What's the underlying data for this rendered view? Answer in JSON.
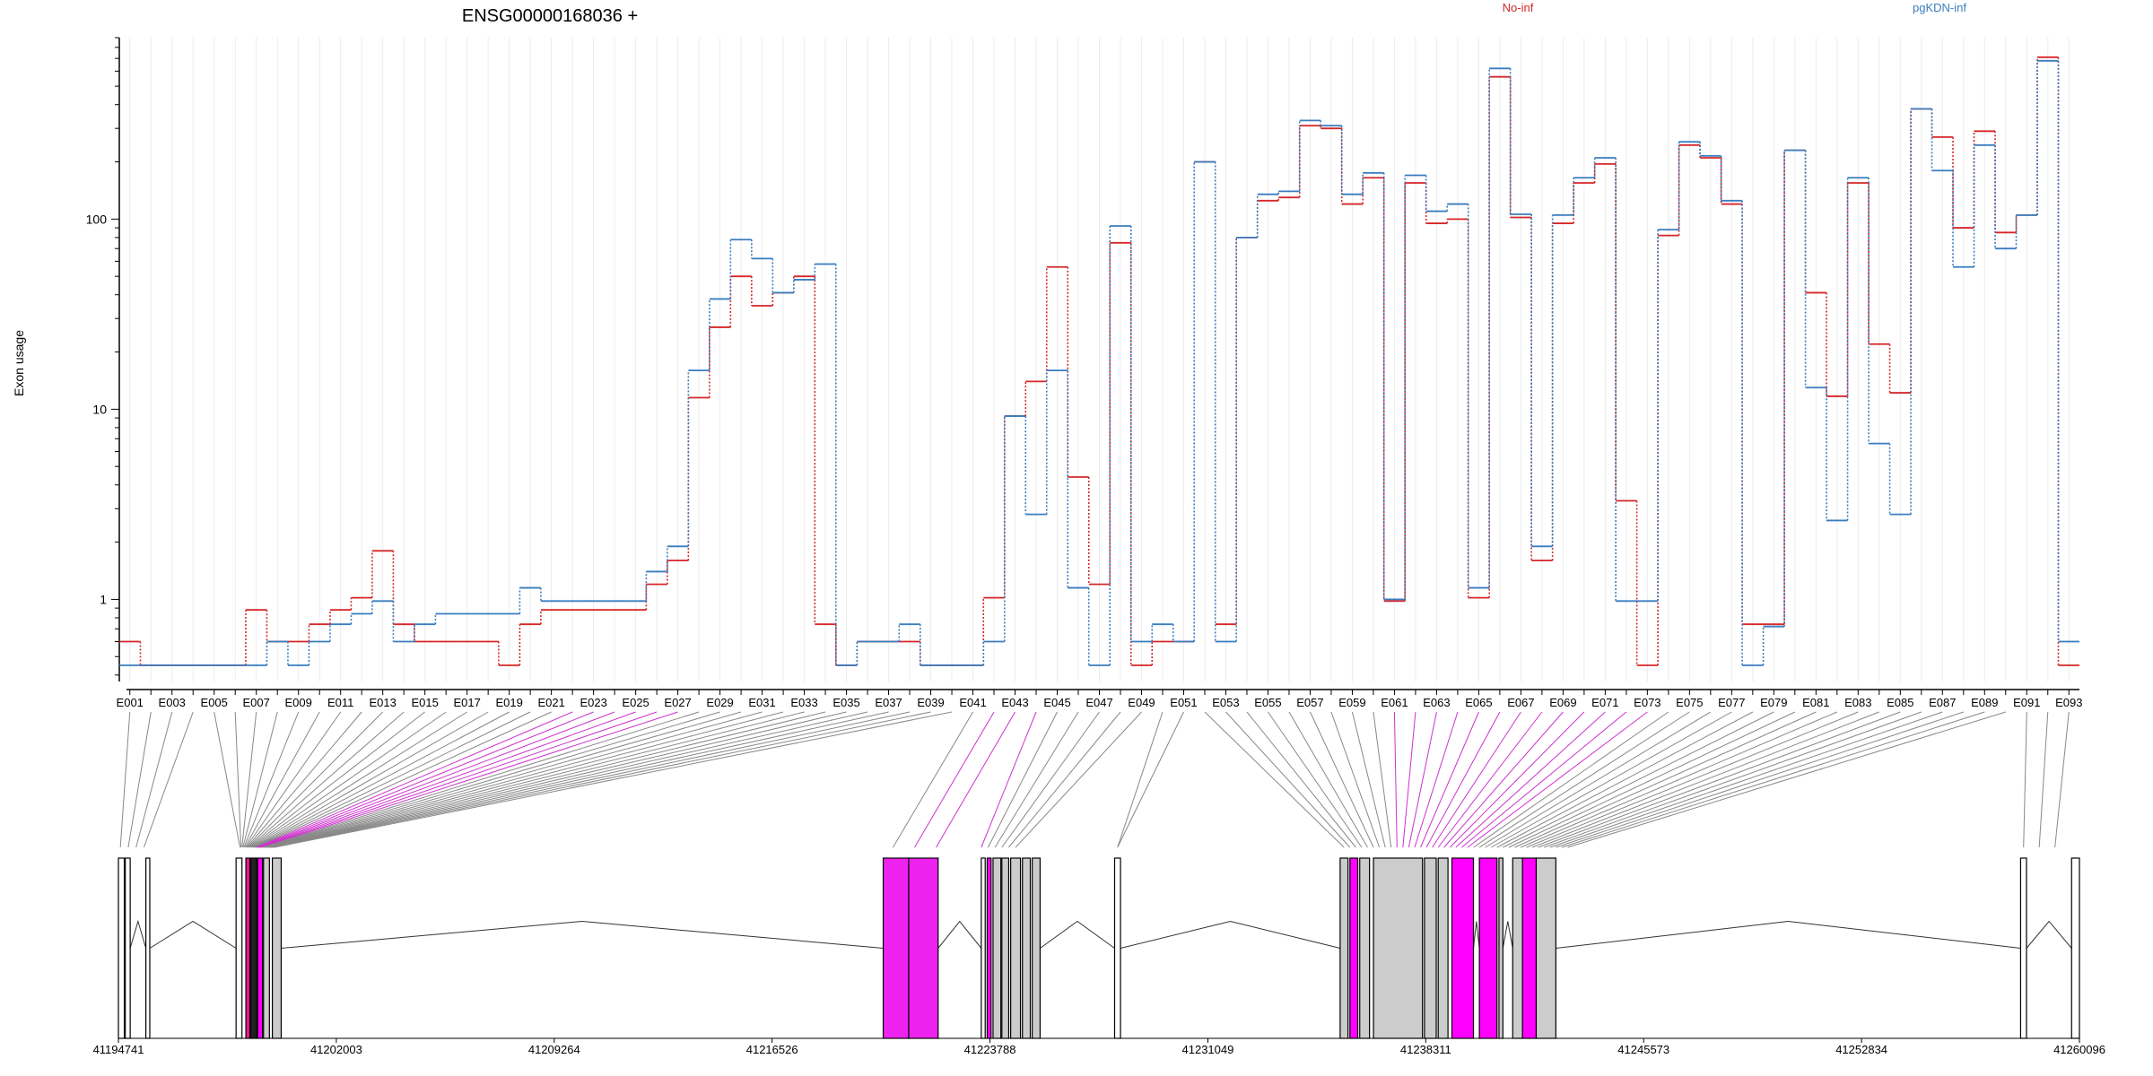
{
  "chart_data": {
    "type": "line",
    "title": "ENSG00000168036 +",
    "ylabel": "Exon usage",
    "xlabel": "",
    "yscale": "log",
    "ylim": [
      0.37,
      900
    ],
    "yticks": [
      1,
      10,
      100
    ],
    "ytick_labels": [
      "1",
      "10",
      "100"
    ],
    "legend": [
      "No-inf",
      "pgKDN-inf"
    ],
    "legend_placement": "top",
    "grid": true,
    "exon_labels_shown": [
      "E001",
      "E003",
      "E005",
      "E007",
      "E009",
      "E011",
      "E013",
      "E015",
      "E017",
      "E019",
      "E021",
      "E023",
      "E025",
      "E027",
      "E029",
      "E031",
      "E033",
      "E035",
      "E037",
      "E039",
      "E041",
      "E043",
      "E045",
      "E047",
      "E049",
      "E051",
      "E053",
      "E055",
      "E057",
      "E059",
      "E061",
      "E063",
      "E065",
      "E067",
      "E069",
      "E071",
      "E073",
      "E075",
      "E077",
      "E079",
      "E081",
      "E083",
      "E085",
      "E087",
      "E089",
      "E091",
      "E093"
    ],
    "series": [
      {
        "name": "No-inf",
        "color": "#d62728",
        "values": [
          0.6,
          0.45,
          0.45,
          0.45,
          0.45,
          0.45,
          0.88,
          0.6,
          0.6,
          0.74,
          0.88,
          1.02,
          1.8,
          0.74,
          0.6,
          0.6,
          0.6,
          0.6,
          0.45,
          0.74,
          0.88,
          0.88,
          0.88,
          0.88,
          0.88,
          1.2,
          1.6,
          11.5,
          27,
          50,
          35,
          41,
          50,
          0.74,
          0.45,
          0.6,
          0.6,
          0.6,
          0.45,
          0.45,
          0.45,
          1.02,
          9.2,
          14,
          56,
          4.4,
          1.2,
          75,
          0.45,
          0.6,
          0.6,
          200,
          0.74,
          80,
          125,
          130,
          310,
          300,
          120,
          165,
          0.98,
          155,
          95,
          100,
          1.02,
          560,
          102,
          1.6,
          95,
          155,
          195,
          3.3,
          0.45,
          82,
          245,
          210,
          120,
          0.74,
          0.74,
          230,
          41,
          11.7,
          155,
          22,
          12.2,
          380,
          270,
          90,
          290,
          85,
          105,
          710,
          0.45,
          0.45
        ]
      },
      {
        "name": "pgKDN-inf",
        "color": "#3a7dbf",
        "values": [
          0.45,
          0.45,
          0.45,
          0.45,
          0.45,
          0.45,
          0.45,
          0.6,
          0.45,
          0.6,
          0.74,
          0.84,
          0.98,
          0.6,
          0.74,
          0.84,
          0.84,
          0.84,
          0.84,
          1.15,
          0.98,
          0.98,
          0.98,
          0.98,
          0.98,
          1.4,
          1.9,
          16,
          38,
          78,
          62,
          41,
          48,
          58,
          0.45,
          0.6,
          0.6,
          0.74,
          0.45,
          0.45,
          0.45,
          0.6,
          9.2,
          2.8,
          16,
          1.15,
          0.45,
          92,
          0.6,
          0.74,
          0.6,
          200,
          0.6,
          80,
          135,
          140,
          330,
          310,
          135,
          175,
          1.0,
          170,
          110,
          120,
          1.15,
          620,
          106,
          1.9,
          105,
          165,
          210,
          0.98,
          0.98,
          88,
          255,
          215,
          125,
          0.45,
          0.72,
          230,
          13,
          2.6,
          165,
          6.6,
          2.8,
          380,
          180,
          56,
          245,
          70,
          105,
          680,
          0.6,
          0.45
        ]
      }
    ],
    "genomic_axis": {
      "tick_labels": [
        "41194741",
        "41202003",
        "41209264",
        "41216526",
        "41223788",
        "41231049",
        "41238311",
        "41245573",
        "41252834",
        "41260096"
      ]
    }
  }
}
